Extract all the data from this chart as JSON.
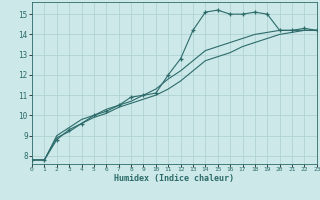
{
  "xlabel": "Humidex (Indice chaleur)",
  "ylabel": "",
  "bg_color": "#cce8e8",
  "grid_color": "#aacfcf",
  "line_color": "#2d6b6b",
  "xlim": [
    0,
    23
  ],
  "ylim": [
    7.6,
    15.6
  ],
  "xticks": [
    0,
    1,
    2,
    3,
    4,
    5,
    6,
    7,
    8,
    9,
    10,
    11,
    12,
    13,
    14,
    15,
    16,
    17,
    18,
    19,
    20,
    21,
    22,
    23
  ],
  "yticks": [
    8,
    9,
    10,
    11,
    12,
    13,
    14,
    15
  ],
  "series": [
    {
      "x": [
        0,
        1,
        2,
        3,
        4,
        5,
        6,
        7,
        8,
        9,
        10,
        11,
        12,
        13,
        14,
        15,
        16,
        17,
        18,
        19,
        20,
        21,
        22,
        23
      ],
      "y": [
        7.8,
        7.8,
        8.8,
        9.3,
        9.6,
        10.0,
        10.2,
        10.5,
        10.9,
        11.0,
        11.1,
        12.0,
        12.8,
        14.2,
        15.1,
        15.2,
        15.0,
        15.0,
        15.1,
        15.0,
        14.2,
        14.2,
        14.3,
        14.2
      ],
      "marker": true
    },
    {
      "x": [
        0,
        1,
        2,
        3,
        4,
        5,
        6,
        7,
        8,
        9,
        10,
        11,
        12,
        13,
        14,
        15,
        16,
        17,
        18,
        19,
        20,
        21,
        22,
        23
      ],
      "y": [
        7.8,
        7.8,
        9.0,
        9.4,
        9.8,
        10.0,
        10.3,
        10.5,
        10.7,
        11.0,
        11.3,
        11.8,
        12.2,
        12.7,
        13.2,
        13.4,
        13.6,
        13.8,
        14.0,
        14.1,
        14.2,
        14.2,
        14.2,
        14.2
      ],
      "marker": false
    },
    {
      "x": [
        0,
        1,
        2,
        3,
        4,
        5,
        6,
        7,
        8,
        9,
        10,
        11,
        12,
        13,
        14,
        15,
        16,
        17,
        18,
        19,
        20,
        21,
        22,
        23
      ],
      "y": [
        7.8,
        7.8,
        8.9,
        9.2,
        9.6,
        9.9,
        10.1,
        10.4,
        10.6,
        10.8,
        11.0,
        11.3,
        11.7,
        12.2,
        12.7,
        12.9,
        13.1,
        13.4,
        13.6,
        13.8,
        14.0,
        14.1,
        14.2,
        14.2
      ],
      "marker": false
    }
  ]
}
